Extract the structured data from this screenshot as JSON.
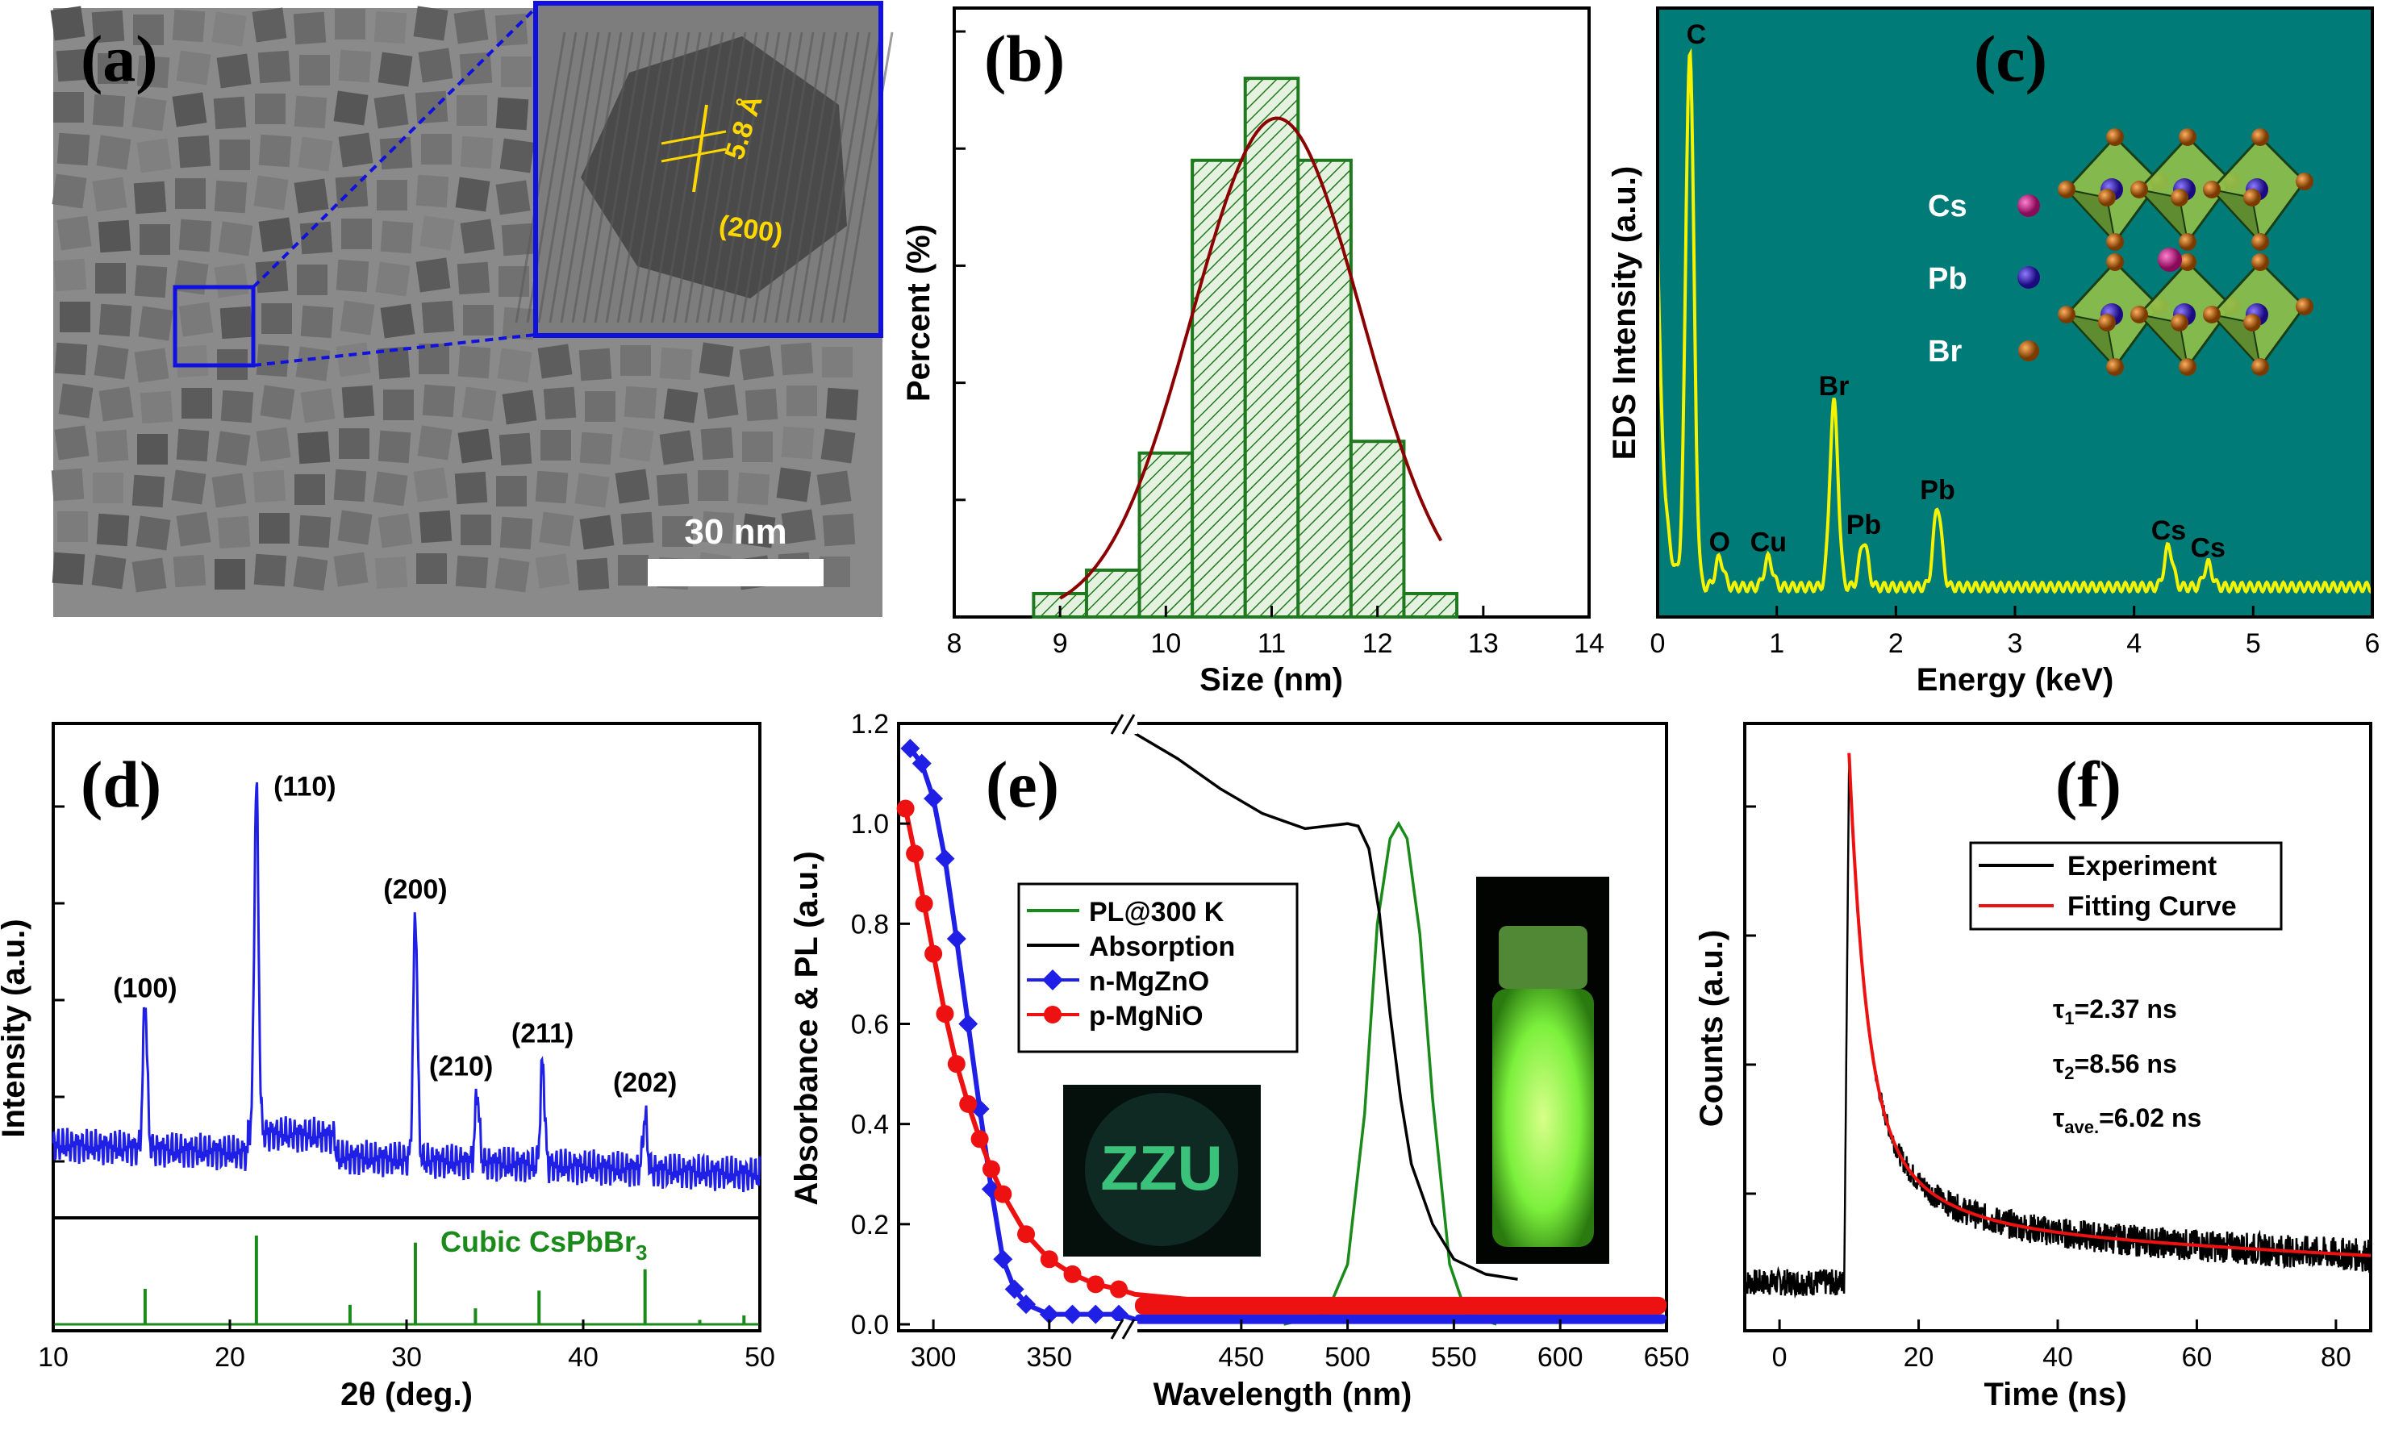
{
  "panels": {
    "a": {
      "label": "(a)",
      "scale_bar": "30 nm",
      "lattice_spacing": "5.8 Å",
      "plane": "(200)"
    },
    "inset_labels": {
      "zzu": "ZZU"
    }
  },
  "chart_data": [
    {
      "panel": "(b)",
      "type": "bar",
      "title": "",
      "xlabel": "Size (nm)",
      "ylabel": "Percent (%)",
      "xlim": [
        8,
        14
      ],
      "xticks": [
        "8",
        "9",
        "10",
        "11",
        "12",
        "13",
        "14"
      ],
      "bin_edges": [
        8.75,
        9.25,
        9.75,
        10.25,
        10.75,
        11.25,
        11.75,
        12.25,
        12.75
      ],
      "values": [
        1,
        2,
        7,
        19.5,
        23,
        19.5,
        7.5,
        1
      ],
      "fit_curve": "gaussian",
      "fit_center": 11.05,
      "fit_sigma": 0.8,
      "fit_peak": 21.3,
      "colors": {
        "bars": "#1f7a1f",
        "fit": "#8b0000"
      }
    },
    {
      "panel": "(c)",
      "type": "line",
      "xlabel": "Energy (keV)",
      "ylabel": "EDS Intensity (a.u.)",
      "xlim": [
        0,
        6
      ],
      "xticks": [
        "0",
        "1",
        "2",
        "3",
        "4",
        "5",
        "6"
      ],
      "peaks": [
        {
          "label": "C",
          "x": 0.27,
          "y": 0.93
        },
        {
          "label": "O",
          "x": 0.52,
          "y": 0.05
        },
        {
          "label": "Cu",
          "x": 0.93,
          "y": 0.05
        },
        {
          "label": "Br",
          "x": 1.48,
          "y": 0.32
        },
        {
          "label": "Pb",
          "x": 1.73,
          "y": 0.08
        },
        {
          "label": "Pb",
          "x": 2.35,
          "y": 0.14
        },
        {
          "label": "Cs",
          "x": 4.29,
          "y": 0.07
        },
        {
          "label": "Cs",
          "x": 4.62,
          "y": 0.04
        }
      ],
      "legend": [
        "Cs",
        "Pb",
        "Br"
      ],
      "colors": {
        "background": "#007b78",
        "trace": "#f4f400",
        "cs": "#c2187d",
        "pb": "#3c22a8",
        "br": "#b8650a"
      }
    },
    {
      "panel": "(d)",
      "type": "line",
      "xlabel": "2θ (deg.)",
      "ylabel": "Intensity (a.u.)",
      "xlim": [
        10,
        50
      ],
      "xticks": [
        "10",
        "20",
        "30",
        "40",
        "50"
      ],
      "peaks": [
        {
          "label": "(100)",
          "x": 15.2,
          "y": 0.36
        },
        {
          "label": "(110)",
          "x": 21.5,
          "y": 0.85
        },
        {
          "label": "(200)",
          "x": 30.5,
          "y": 0.6
        },
        {
          "label": "(210)",
          "x": 34.0,
          "y": 0.17
        },
        {
          "label": "(211)",
          "x": 37.7,
          "y": 0.25
        },
        {
          "label": "(202)",
          "x": 43.5,
          "y": 0.13
        }
      ],
      "reference": {
        "name": "Cubic CsPbBr",
        "subscript": "3",
        "lines": [
          [
            15.2,
            0.4
          ],
          [
            21.5,
            1.0
          ],
          [
            26.8,
            0.22
          ],
          [
            30.5,
            0.92
          ],
          [
            33.9,
            0.18
          ],
          [
            37.5,
            0.38
          ],
          [
            43.5,
            0.62
          ],
          [
            46.6,
            0.05
          ],
          [
            49.1,
            0.1
          ]
        ]
      },
      "colors": {
        "trace": "#1f1fe6",
        "reference": "#1a8a1a"
      }
    },
    {
      "panel": "(e)",
      "type": "line",
      "xlabel": "Wavelength (nm)",
      "ylabel": "Absorbance & PL (a.u.)",
      "ylim": [
        0,
        1.2
      ],
      "yticks": [
        "0.0",
        "0.2",
        "0.4",
        "0.6",
        "0.8",
        "1.0",
        "1.2"
      ],
      "xticks_left": [
        "300",
        "350"
      ],
      "xticks_right": [
        "450",
        "500",
        "550",
        "600",
        "650"
      ],
      "x_break": [
        380,
        400
      ],
      "legend": [
        "PL@300 K",
        "Absorption",
        "n-MgZnO",
        "p-MgNiO"
      ],
      "series": [
        {
          "name": "PL@300 K",
          "x": [
            470,
            490,
            500,
            508,
            514,
            520,
            524,
            528,
            534,
            540,
            548,
            556,
            570
          ],
          "values": [
            0,
            0.02,
            0.12,
            0.42,
            0.8,
            0.97,
            1.0,
            0.97,
            0.78,
            0.45,
            0.12,
            0.02,
            0
          ]
        },
        {
          "name": "Absorption",
          "x": [
            400,
            420,
            440,
            460,
            480,
            500,
            505,
            510,
            515,
            520,
            525,
            530,
            540,
            550,
            565,
            580
          ],
          "values": [
            1.18,
            1.13,
            1.07,
            1.02,
            0.99,
            1.0,
            0.995,
            0.95,
            0.82,
            0.62,
            0.45,
            0.32,
            0.2,
            0.13,
            0.1,
            0.09
          ]
        },
        {
          "name": "n-MgZnO",
          "x": [
            290,
            295,
            300,
            305,
            310,
            315,
            320,
            325,
            330,
            335,
            340,
            350,
            360,
            370,
            380,
            400,
            500,
            600,
            650
          ],
          "values": [
            1.15,
            1.12,
            1.05,
            0.93,
            0.77,
            0.6,
            0.43,
            0.27,
            0.13,
            0.07,
            0.04,
            0.02,
            0.02,
            0.02,
            0.02,
            0.01,
            0.01,
            0.01,
            0.01
          ]
        },
        {
          "name": "p-MgNiO",
          "x": [
            288,
            292,
            296,
            300,
            305,
            310,
            315,
            320,
            325,
            330,
            340,
            350,
            360,
            370,
            380,
            400,
            450,
            500,
            550,
            600,
            650
          ],
          "values": [
            1.03,
            0.94,
            0.84,
            0.74,
            0.62,
            0.52,
            0.44,
            0.37,
            0.31,
            0.26,
            0.18,
            0.13,
            0.1,
            0.08,
            0.07,
            0.06,
            0.04,
            0.04,
            0.05,
            0.05,
            0.04
          ]
        }
      ],
      "colors": {
        "pl": "#1a8a1a",
        "absorption": "#000000",
        "mgzno": "#1f1fe6",
        "mgnio": "#ee1111"
      }
    },
    {
      "panel": "(f)",
      "type": "line",
      "xlabel": "Time (ns)",
      "ylabel": "Counts (a.u.)",
      "xlim": [
        -5,
        85
      ],
      "xticks": [
        "0",
        "20",
        "40",
        "60",
        "80"
      ],
      "legend": [
        "Experiment",
        "Fitting Curve"
      ],
      "tau1": {
        "prefix": "τ",
        "sub": "1",
        "value": "=2.37 ns"
      },
      "tau2": {
        "prefix": "τ",
        "sub": "2",
        "value": "=8.56 ns"
      },
      "tau_ave": {
        "prefix": "τ",
        "sub": "ave.",
        "value": "=6.02 ns"
      },
      "peak_time": 10,
      "decay": {
        "a1": 0.64,
        "t1": 2.37,
        "a2": 0.23,
        "t2": 8.56,
        "base": 0.15
      },
      "colors": {
        "experiment": "#000000",
        "fit": "#ee1111"
      }
    }
  ]
}
